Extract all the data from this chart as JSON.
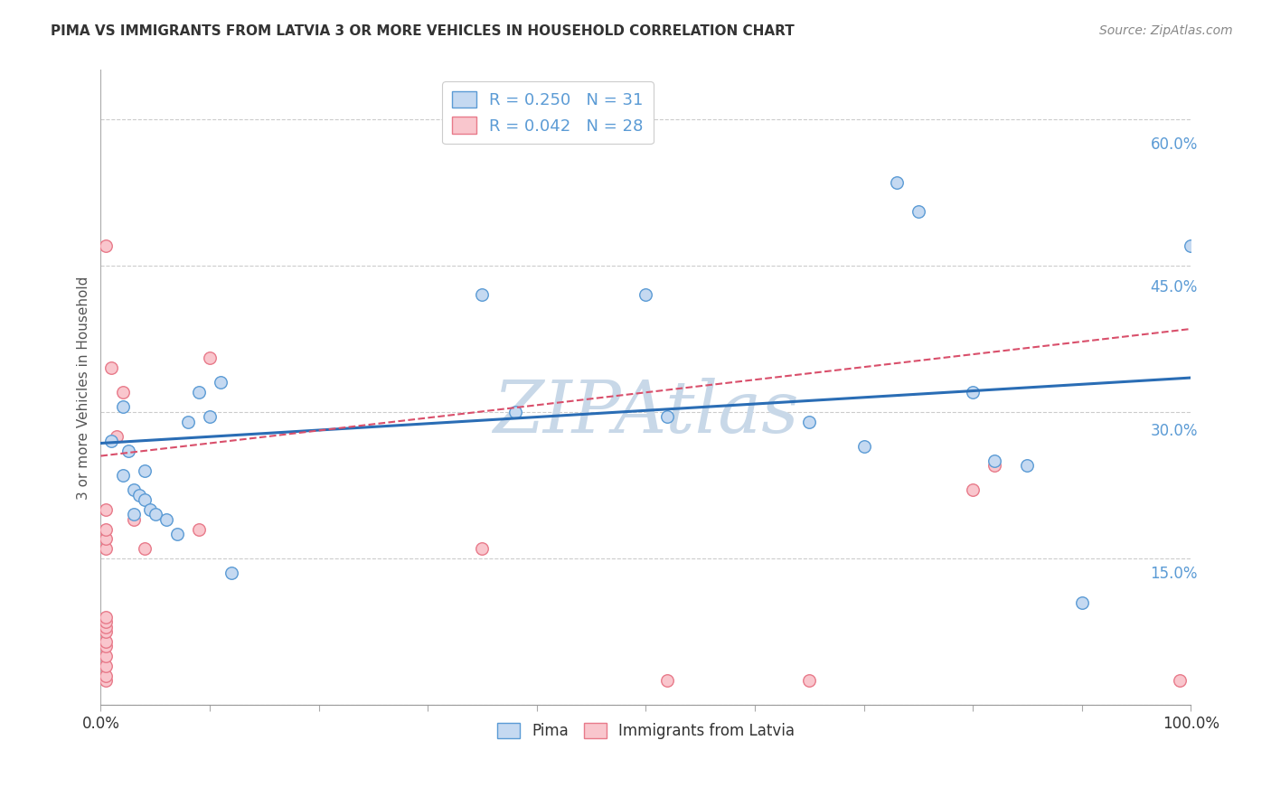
{
  "title": "PIMA VS IMMIGRANTS FROM LATVIA 3 OR MORE VEHICLES IN HOUSEHOLD CORRELATION CHART",
  "source": "Source: ZipAtlas.com",
  "ylabel": "3 or more Vehicles in Household",
  "xlim": [
    0,
    1.0
  ],
  "ylim": [
    0,
    0.65
  ],
  "xticks": [
    0.0,
    0.1,
    0.2,
    0.3,
    0.4,
    0.5,
    0.6,
    0.7,
    0.8,
    0.9,
    1.0
  ],
  "yticks": [
    0.0,
    0.15,
    0.3,
    0.45,
    0.6
  ],
  "ytick_labels": [
    "",
    "15.0%",
    "30.0%",
    "45.0%",
    "60.0%"
  ],
  "xtick_labels_shown": {
    "0.0": "0.0%",
    "1.0": "100.0%"
  },
  "background_color": "#ffffff",
  "grid_color": "#cccccc",
  "pima_color": "#c5d9f1",
  "pima_edge_color": "#5b9bd5",
  "latvia_color": "#f9c6cd",
  "latvia_edge_color": "#e87a8a",
  "legend_pima_R": "0.250",
  "legend_pima_N": "31",
  "legend_latvia_R": "0.042",
  "legend_latvia_N": "28",
  "pima_x": [
    0.01,
    0.02,
    0.02,
    0.025,
    0.03,
    0.03,
    0.035,
    0.04,
    0.04,
    0.045,
    0.05,
    0.06,
    0.07,
    0.08,
    0.09,
    0.1,
    0.11,
    0.12,
    0.35,
    0.38,
    0.5,
    0.52,
    0.65,
    0.7,
    0.73,
    0.75,
    0.8,
    0.82,
    0.85,
    0.9,
    1.0
  ],
  "pima_y": [
    0.27,
    0.305,
    0.235,
    0.26,
    0.22,
    0.195,
    0.215,
    0.24,
    0.21,
    0.2,
    0.195,
    0.19,
    0.175,
    0.29,
    0.32,
    0.295,
    0.33,
    0.135,
    0.42,
    0.3,
    0.42,
    0.295,
    0.29,
    0.265,
    0.535,
    0.505,
    0.32,
    0.25,
    0.245,
    0.105,
    0.47
  ],
  "latvia_x": [
    0.005,
    0.005,
    0.005,
    0.005,
    0.005,
    0.005,
    0.005,
    0.005,
    0.005,
    0.005,
    0.005,
    0.005,
    0.005,
    0.005,
    0.005,
    0.01,
    0.015,
    0.02,
    0.03,
    0.04,
    0.09,
    0.1,
    0.35,
    0.52,
    0.65,
    0.8,
    0.82,
    0.99
  ],
  "latvia_y": [
    0.025,
    0.03,
    0.04,
    0.05,
    0.06,
    0.065,
    0.075,
    0.08,
    0.085,
    0.09,
    0.16,
    0.17,
    0.18,
    0.2,
    0.47,
    0.345,
    0.275,
    0.32,
    0.19,
    0.16,
    0.18,
    0.355,
    0.16,
    0.025,
    0.025,
    0.22,
    0.245,
    0.025
  ],
  "pima_line_color": "#2a6db5",
  "latvia_line_color": "#d94f6b",
  "pima_line_x": [
    0.0,
    1.0
  ],
  "pima_line_y_start": 0.268,
  "pima_line_y_end": 0.335,
  "latvia_line_x": [
    0.0,
    1.0
  ],
  "latvia_line_y_start": 0.255,
  "latvia_line_y_end": 0.385,
  "watermark_text": "ZIPAtlas",
  "watermark_color": "#c8d8e8",
  "marker_size": 95,
  "ytick_color": "#5b9bd5"
}
